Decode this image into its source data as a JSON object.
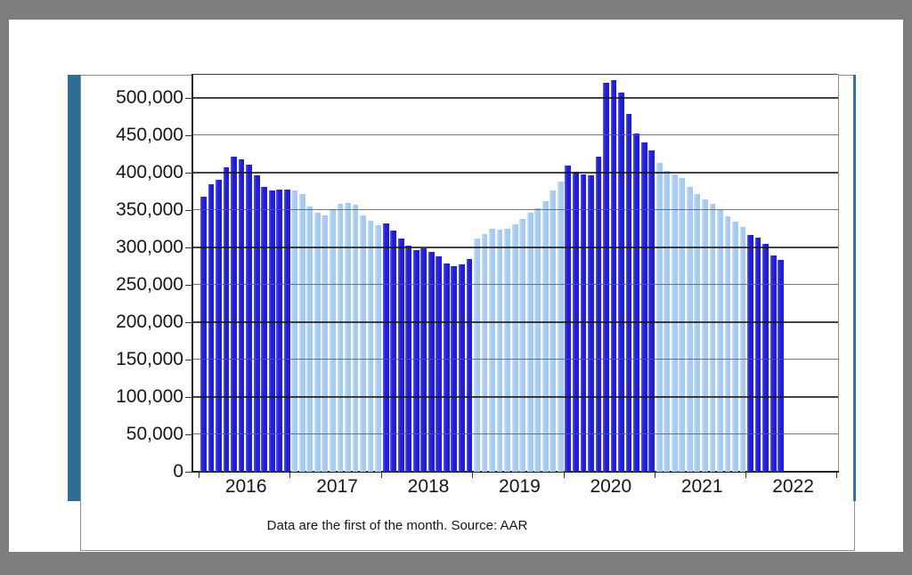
{
  "accent": {
    "stripe_color": "#2e6e96",
    "right_line_color": "#2d74a8"
  },
  "chart_data": {
    "type": "bar",
    "title": "",
    "xlabel": "",
    "ylabel": "",
    "x_unit": "month (data are the first of each month)",
    "ylim": [
      0,
      531000
    ],
    "grid": "horizontal, every 50,000",
    "legend_position": "none",
    "footnote": "Data are the first of the month.  Source: AAR",
    "palette": {
      "dark": "#1f1de2",
      "light": "#a5cbf2"
    },
    "y_ticks": [
      {
        "value": 500000,
        "label": "500,000"
      },
      {
        "value": 450000,
        "label": "450,000"
      },
      {
        "value": 400000,
        "label": "400,000"
      },
      {
        "value": 350000,
        "label": "350,000"
      },
      {
        "value": 300000,
        "label": "300,000"
      },
      {
        "value": 250000,
        "label": "250,000"
      },
      {
        "value": 200000,
        "label": "200,000"
      },
      {
        "value": 150000,
        "label": "150,000"
      },
      {
        "value": 100000,
        "label": "100,000"
      },
      {
        "value": 50000,
        "label": "50,000"
      },
      {
        "value": 0,
        "label": "0"
      }
    ],
    "years": [
      {
        "label": "2016",
        "shade": "dark",
        "values": [
          368000,
          384000,
          391000,
          407000,
          421000,
          418000,
          411000,
          396000,
          381000,
          376000,
          377000,
          377000
        ]
      },
      {
        "label": "2017",
        "shade": "light",
        "values": [
          376000,
          372000,
          355000,
          346000,
          343000,
          351000,
          358000,
          360000,
          357000,
          343000,
          336000,
          330000
        ]
      },
      {
        "label": "2018",
        "shade": "dark",
        "values": [
          332000,
          323000,
          312000,
          302000,
          297000,
          299000,
          294000,
          288000,
          279000,
          275000,
          277000,
          285000
        ]
      },
      {
        "label": "2019",
        "shade": "light",
        "values": [
          312000,
          318000,
          325000,
          324000,
          325000,
          331000,
          338000,
          346000,
          353000,
          362000,
          376000,
          388000
        ]
      },
      {
        "label": "2020",
        "shade": "dark",
        "values": [
          410000,
          401000,
          398000,
          397000,
          422000,
          520000,
          524000,
          507000,
          479000,
          453000,
          441000,
          430000
        ]
      },
      {
        "label": "2021",
        "shade": "light",
        "values": [
          413000,
          402000,
          398000,
          393000,
          381000,
          371000,
          364000,
          358000,
          350000,
          342000,
          335000,
          327000
        ]
      },
      {
        "label": "2022",
        "shade": "dark",
        "values": [
          317000,
          313000,
          305000,
          289000,
          283000
        ]
      }
    ]
  }
}
